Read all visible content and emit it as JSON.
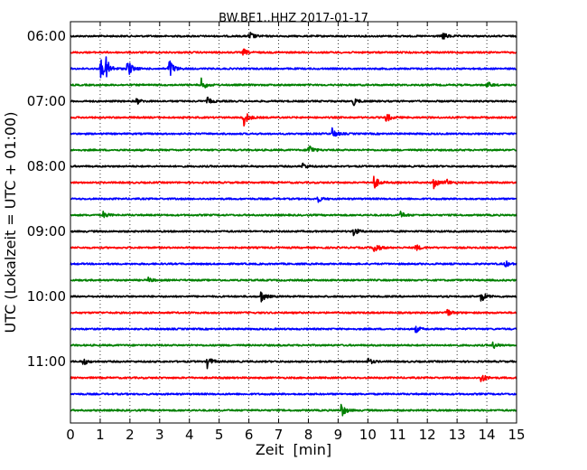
{
  "chart_data": {
    "type": "line",
    "title": "BW.BE1..HHZ 2017-01-17",
    "xlabel": "Zeit  [min]",
    "ylabel": "UTC (Lokalzeit = UTC + 01:00)",
    "xlim": [
      0,
      15
    ],
    "x_ticks": [
      "0",
      "1",
      "2",
      "3",
      "4",
      "5",
      "6",
      "7",
      "8",
      "9",
      "10",
      "11",
      "12",
      "13",
      "14",
      "15"
    ],
    "y_ticks": [
      "06:00",
      "07:00",
      "08:00",
      "09:00",
      "10:00",
      "11:00"
    ],
    "grid": "vertical dotted",
    "trace_colors": [
      "#000000",
      "#ff0000",
      "#0000ff",
      "#008000"
    ],
    "trace_interval_min": 15,
    "traces": [
      {
        "start": "06:00",
        "color": "#000000",
        "events": [
          {
            "t": 6.0,
            "a": 6
          },
          {
            "t": 12.5,
            "a": 5
          }
        ]
      },
      {
        "start": "06:15",
        "color": "#ff0000",
        "events": [
          {
            "t": 5.8,
            "a": 4
          }
        ]
      },
      {
        "start": "06:30",
        "color": "#0000ff",
        "events": [
          {
            "t": 1.0,
            "a": 14
          },
          {
            "t": 1.2,
            "a": 10
          },
          {
            "t": 1.9,
            "a": 12
          },
          {
            "t": 3.3,
            "a": 14
          }
        ]
      },
      {
        "start": "06:45",
        "color": "#008000",
        "events": [
          {
            "t": 4.4,
            "a": 7
          },
          {
            "t": 14.0,
            "a": 4
          }
        ]
      },
      {
        "start": "07:00",
        "color": "#000000",
        "events": [
          {
            "t": 2.2,
            "a": 4
          },
          {
            "t": 4.6,
            "a": 4
          },
          {
            "t": 9.5,
            "a": 5
          }
        ]
      },
      {
        "start": "07:15",
        "color": "#ff0000",
        "events": [
          {
            "t": 5.8,
            "a": 12
          },
          {
            "t": 10.6,
            "a": 6
          }
        ]
      },
      {
        "start": "07:30",
        "color": "#0000ff",
        "events": [
          {
            "t": 8.8,
            "a": 6
          }
        ]
      },
      {
        "start": "07:45",
        "color": "#008000",
        "events": [
          {
            "t": 8.0,
            "a": 8
          }
        ]
      },
      {
        "start": "08:00",
        "color": "#000000",
        "events": [
          {
            "t": 7.8,
            "a": 4
          }
        ]
      },
      {
        "start": "08:15",
        "color": "#ff0000",
        "events": [
          {
            "t": 10.2,
            "a": 8
          },
          {
            "t": 12.2,
            "a": 7
          },
          {
            "t": 12.6,
            "a": 5
          }
        ]
      },
      {
        "start": "08:30",
        "color": "#0000ff",
        "events": [
          {
            "t": 8.3,
            "a": 4
          }
        ]
      },
      {
        "start": "08:45",
        "color": "#008000",
        "events": [
          {
            "t": 1.1,
            "a": 4
          },
          {
            "t": 11.1,
            "a": 4
          }
        ]
      },
      {
        "start": "09:00",
        "color": "#000000",
        "events": [
          {
            "t": 9.5,
            "a": 6
          }
        ]
      },
      {
        "start": "09:15",
        "color": "#ff0000",
        "events": [
          {
            "t": 10.2,
            "a": 8
          },
          {
            "t": 11.6,
            "a": 4
          }
        ]
      },
      {
        "start": "09:30",
        "color": "#0000ff",
        "events": [
          {
            "t": 14.6,
            "a": 4
          }
        ]
      },
      {
        "start": "09:45",
        "color": "#008000",
        "events": [
          {
            "t": 2.6,
            "a": 3
          }
        ]
      },
      {
        "start": "10:00",
        "color": "#000000",
        "events": [
          {
            "t": 6.4,
            "a": 7
          },
          {
            "t": 13.8,
            "a": 7
          }
        ]
      },
      {
        "start": "10:15",
        "color": "#ff0000",
        "events": [
          {
            "t": 12.6,
            "a": 7
          }
        ]
      },
      {
        "start": "10:30",
        "color": "#0000ff",
        "events": [
          {
            "t": 11.6,
            "a": 4
          }
        ]
      },
      {
        "start": "10:45",
        "color": "#008000",
        "events": [
          {
            "t": 14.2,
            "a": 4
          }
        ]
      },
      {
        "start": "11:00",
        "color": "#000000",
        "events": [
          {
            "t": 0.4,
            "a": 5
          },
          {
            "t": 4.6,
            "a": 7
          },
          {
            "t": 10.0,
            "a": 4
          }
        ]
      },
      {
        "start": "11:15",
        "color": "#ff0000",
        "events": [
          {
            "t": 13.8,
            "a": 6
          }
        ]
      },
      {
        "start": "11:30",
        "color": "#0000ff",
        "events": []
      },
      {
        "start": "11:45",
        "color": "#008000",
        "events": [
          {
            "t": 9.1,
            "a": 8
          }
        ]
      }
    ]
  }
}
